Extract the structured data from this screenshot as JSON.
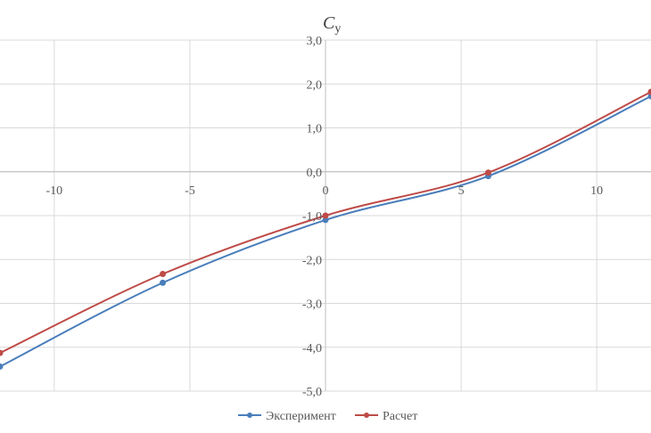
{
  "chart_data": {
    "type": "line",
    "title": "",
    "ylabel_main": "C",
    "ylabel_sub": "y",
    "xlim": [
      -12,
      12
    ],
    "ylim": [
      -5,
      3
    ],
    "x_ticks": [
      "-10",
      "-5",
      "0",
      "5",
      "10"
    ],
    "x_tick_values": [
      -10,
      -5,
      0,
      5,
      10
    ],
    "y_ticks": [
      "3,0",
      "2,0",
      "1,0",
      "0,0",
      "-1,0",
      "-2,0",
      "-3,0",
      "-4,0",
      "-5,0"
    ],
    "y_tick_values": [
      3,
      2,
      1,
      0,
      -1,
      -2,
      -3,
      -4,
      -5
    ],
    "grid": true,
    "legend_position": "bottom",
    "series": [
      {
        "name": "Эксперимент",
        "color": "#4a7ebb",
        "points": [
          [
            -12,
            -4.44
          ],
          [
            -6,
            -2.53
          ],
          [
            0,
            -1.1
          ],
          [
            6,
            -0.1
          ],
          [
            12,
            1.72
          ]
        ]
      },
      {
        "name": "Расчет",
        "color": "#be4b48",
        "points": [
          [
            -12,
            -4.13
          ],
          [
            -6,
            -2.33
          ],
          [
            0,
            -1.0
          ],
          [
            6,
            -0.02
          ],
          [
            12,
            1.82
          ]
        ]
      }
    ]
  }
}
